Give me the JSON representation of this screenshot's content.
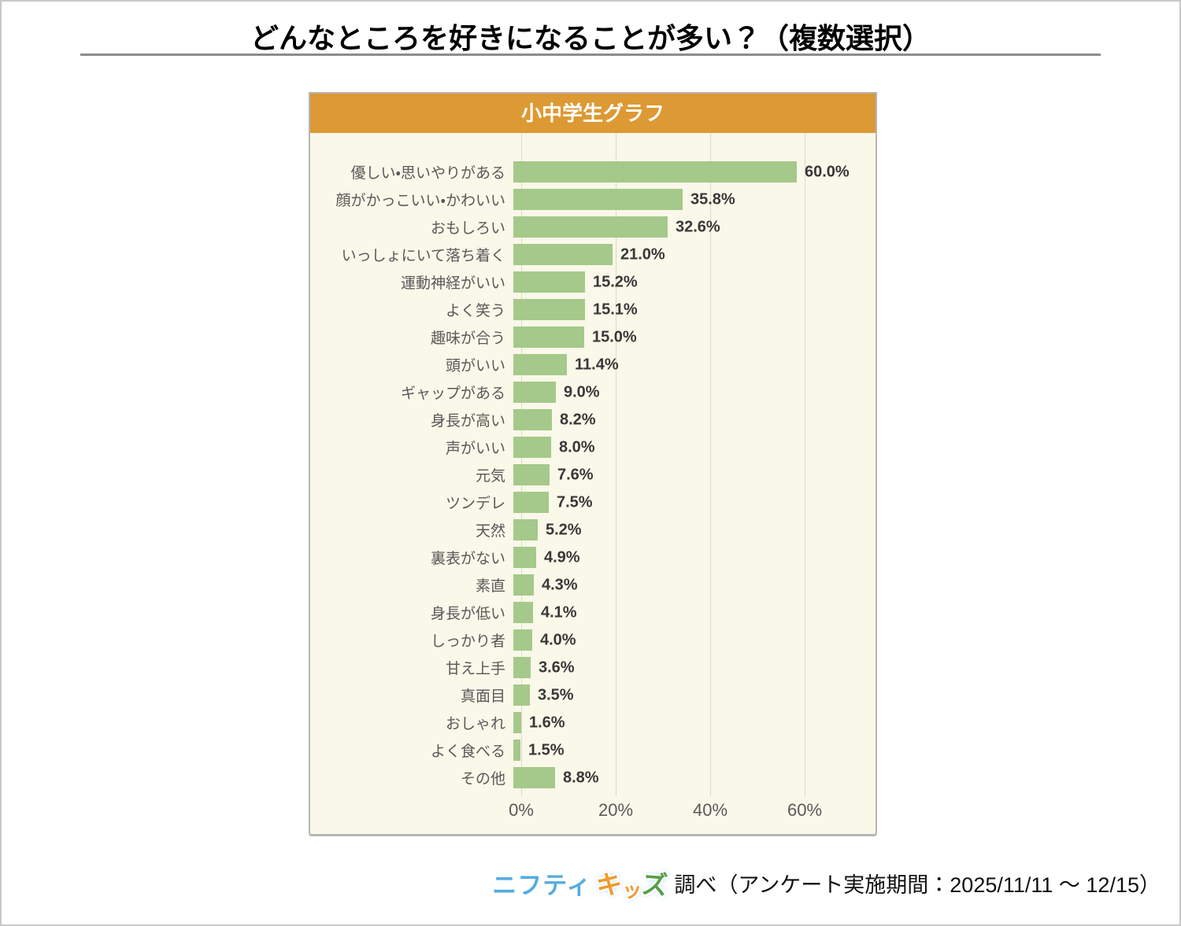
{
  "page": {
    "title": "どんなところを好きになることが多い？（複数選択）"
  },
  "panel": {
    "header": "小中学生グラフ"
  },
  "chart_data": {
    "type": "bar",
    "orientation": "horizontal",
    "title": "小中学生グラフ",
    "categories": [
      "優しい・思いやりがある",
      "顔がかっこいい・かわいい",
      "おもしろい",
      "いっしょにいて落ち着く",
      "運動神経がいい",
      "よく笑う",
      "趣味が合う",
      "頭がいい",
      "ギャップがある",
      "身長が高い",
      "声がいい",
      "元気",
      "ツンデレ",
      "天然",
      "裏表がない",
      "素直",
      "身長が低い",
      "しっかり者",
      "甘え上手",
      "真面目",
      "おしゃれ",
      "よく食べる",
      "その他"
    ],
    "values": [
      60.0,
      35.8,
      32.6,
      21.0,
      15.2,
      15.1,
      15.0,
      11.4,
      9.0,
      8.2,
      8.0,
      7.6,
      7.5,
      5.2,
      4.9,
      4.3,
      4.1,
      4.0,
      3.6,
      3.5,
      1.6,
      1.5,
      8.8
    ],
    "value_labels": [
      "60.0%",
      "35.8%",
      "32.6%",
      "21.0%",
      "15.2%",
      "15.1%",
      "15.0%",
      "11.4%",
      "9.0%",
      "8.2%",
      "8.0%",
      "7.6%",
      "7.5%",
      "5.2%",
      "4.9%",
      "4.3%",
      "4.1%",
      "4.0%",
      "3.6%",
      "3.5%",
      "1.6%",
      "1.5%",
      "8.8%"
    ],
    "x_ticks": [
      "0%",
      "20%",
      "40%",
      "60%"
    ],
    "xlim": [
      0,
      73.33
    ],
    "grid": "vertical",
    "legend": "none",
    "bar_color": "#a5c98a",
    "header_bg": "#dd9933",
    "background": "#faf8e9"
  },
  "footer": {
    "logo_nifty": "ニフティ",
    "logo_kids": [
      "キ",
      "ッ",
      "ズ"
    ],
    "text": "調べ（アンケート実施期間：2025/11/11 ～ 12/15）"
  }
}
